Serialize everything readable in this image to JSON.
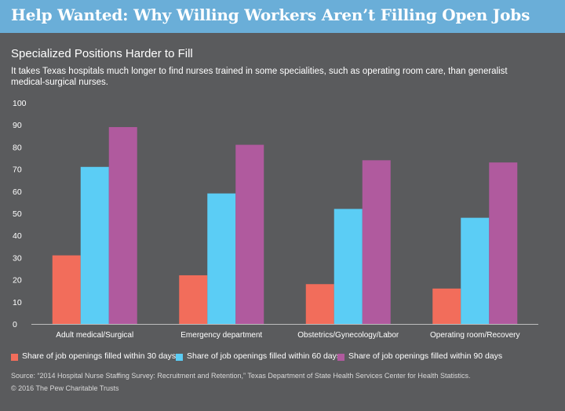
{
  "header": {
    "title": "Help Wanted: Why Willing Workers Aren’t Filling Open Jobs"
  },
  "subtitle": "Specialized Positions Harder to Fill",
  "description": "It takes Texas hospitals much longer to find nurses trained in some specialities, such as operating room care, than generalist medical-surgical nurses.",
  "chart_data": {
    "type": "bar",
    "categories": [
      "Adult medical/Surgical",
      "Emergency department",
      "Obstetrics/Gynecology/Labor",
      "Operating room/Recovery"
    ],
    "series": [
      {
        "name": "Share of job openings filled within 30 days",
        "color": "#f26d5b",
        "values": [
          31,
          22,
          18,
          16
        ]
      },
      {
        "name": "Share of job openings filled within 60 days",
        "color": "#5bcdf5",
        "values": [
          71,
          59,
          52,
          48
        ]
      },
      {
        "name": "Share of job openings filled within 90 days",
        "color": "#b05a9e",
        "values": [
          89,
          81,
          74,
          73
        ]
      }
    ],
    "ylim": [
      0,
      100
    ],
    "yticks": [
      0,
      10,
      20,
      30,
      40,
      50,
      60,
      70,
      80,
      90,
      100
    ],
    "xlabel": "",
    "ylabel": "",
    "grid": false,
    "legend": "bottom"
  },
  "source": "Source: “2014 Hospital Nurse Staffing Survey: Recruitment and Retention,” Texas Department of State Health Services Center for Health Statistics.",
  "copyright": "© 2016 The Pew Charitable Trusts"
}
